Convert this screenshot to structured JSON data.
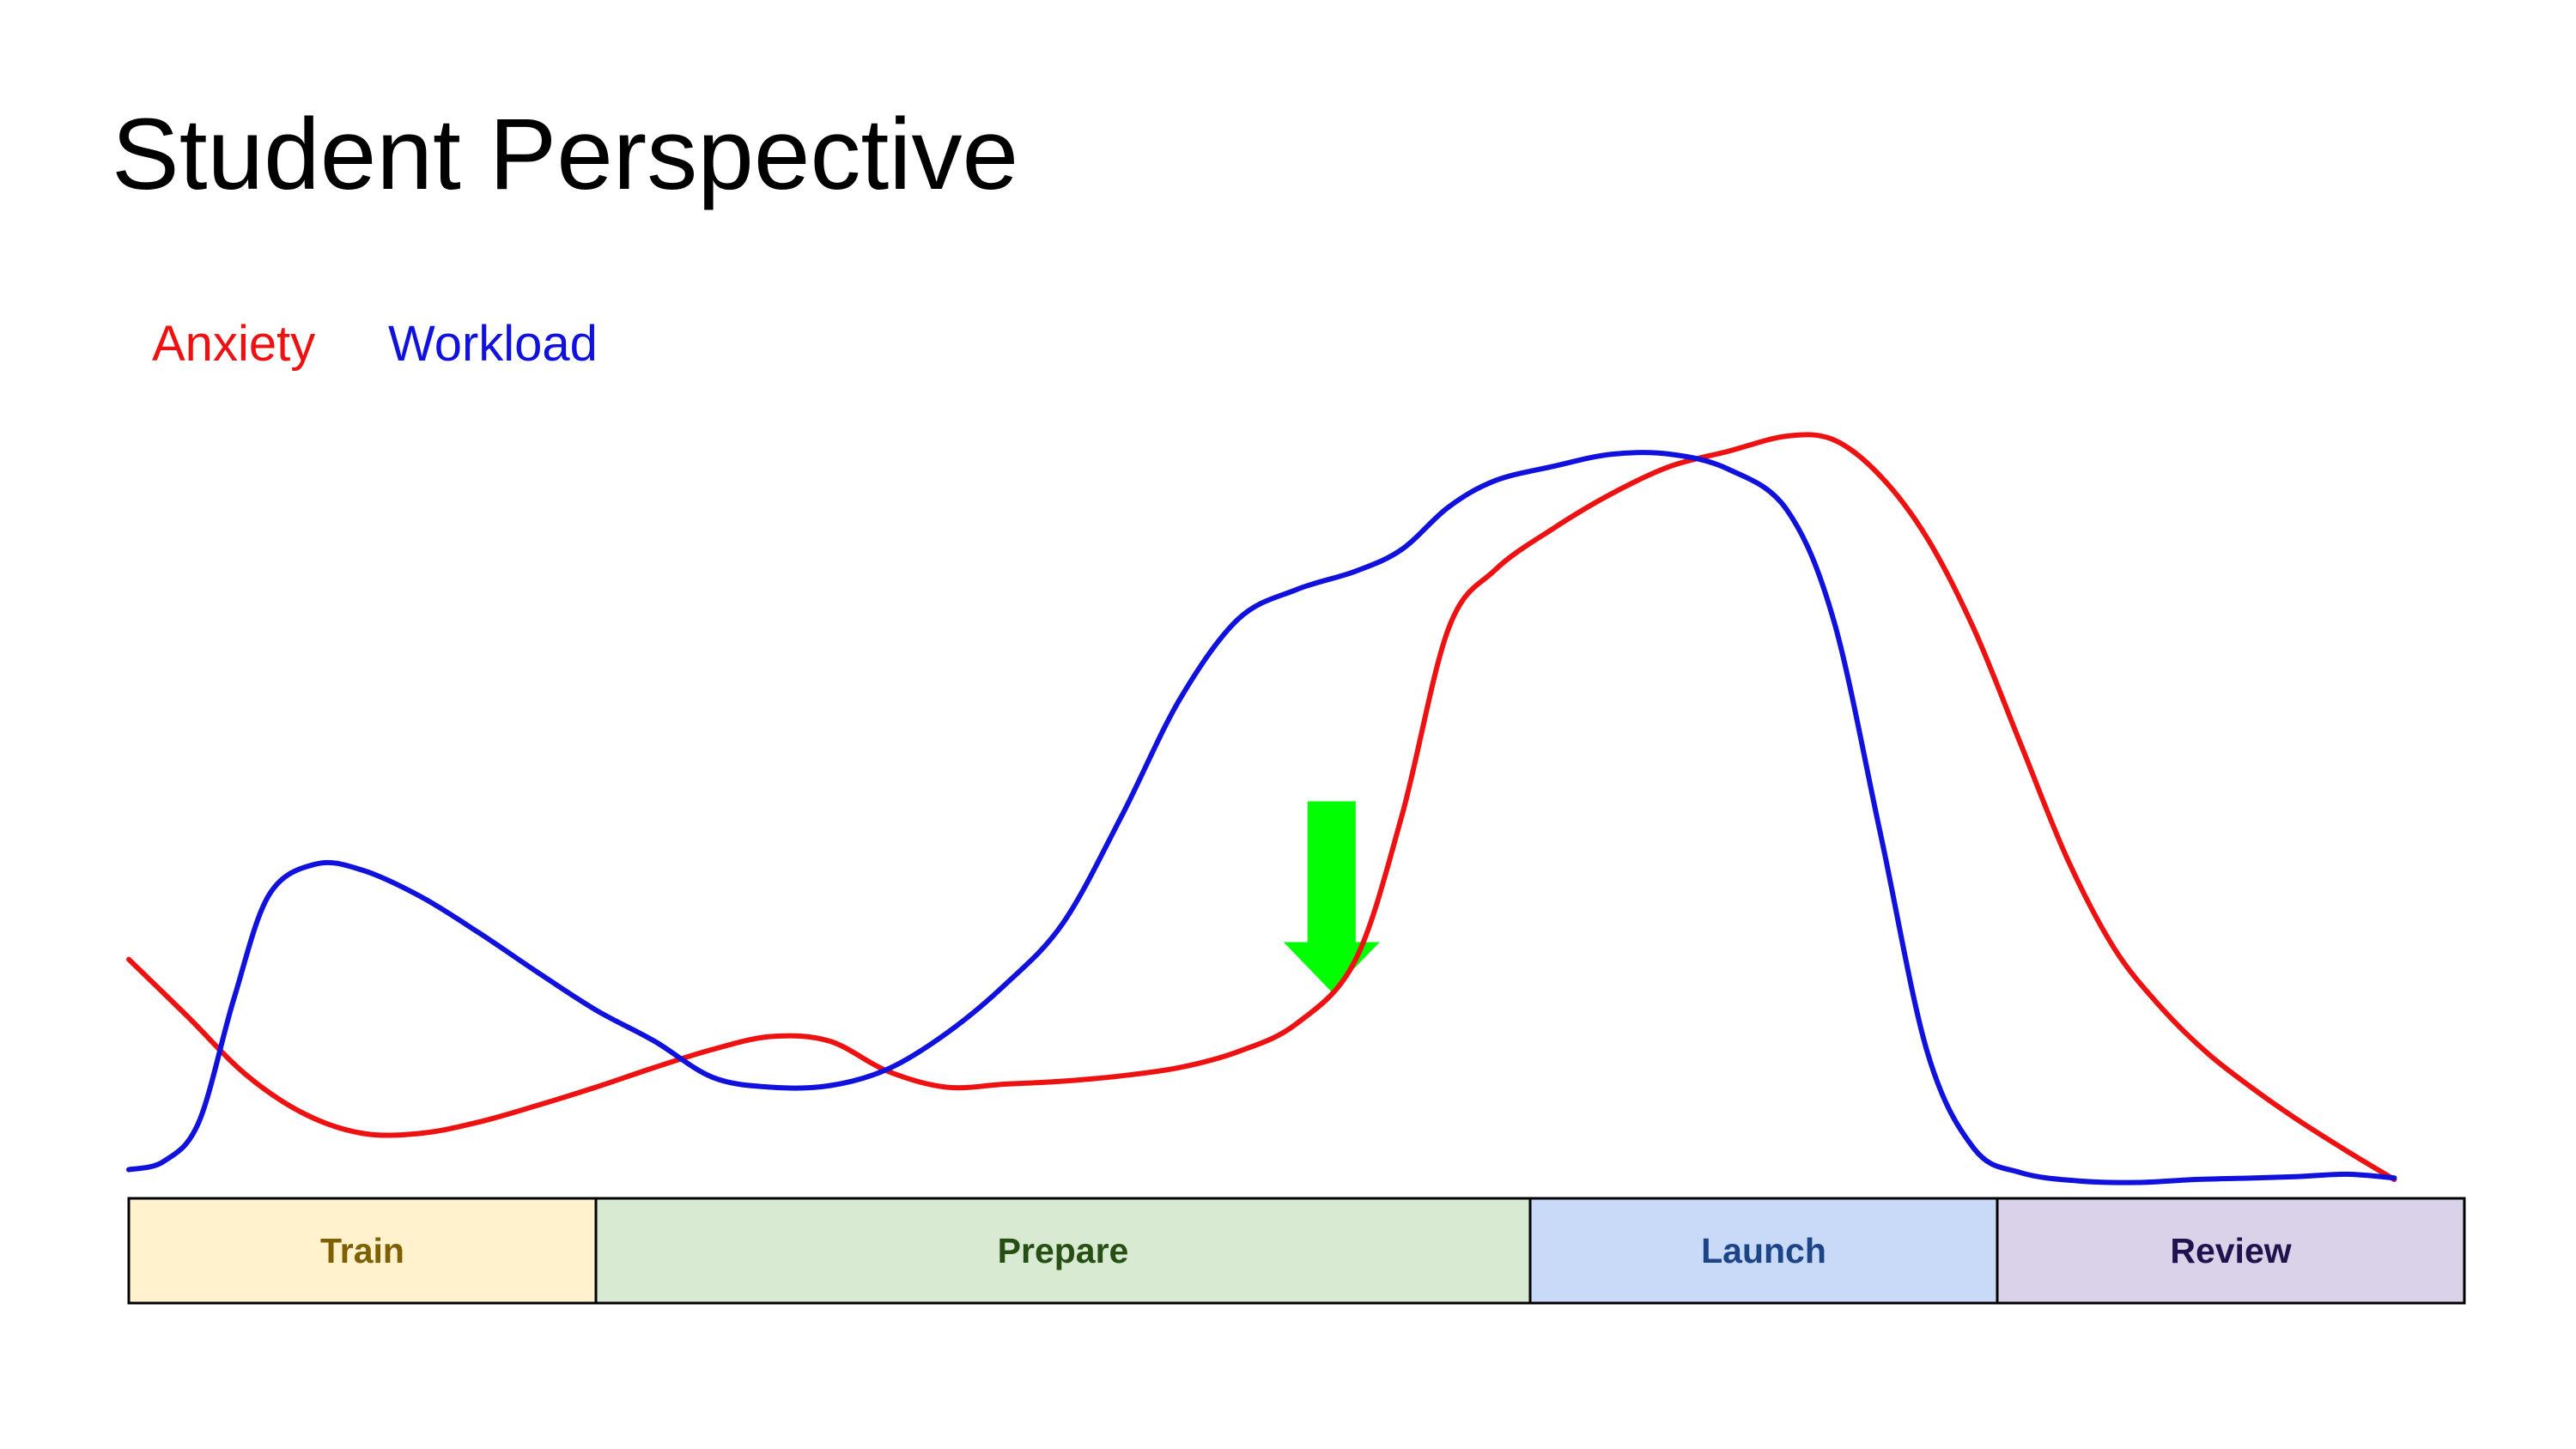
{
  "slide": {
    "title": "Student Perspective"
  },
  "chart_data": {
    "type": "line",
    "title": "Student Perspective",
    "xlabel": "",
    "ylabel": "",
    "x_range": [
      0,
      100
    ],
    "y_range": [
      0,
      100
    ],
    "grid": false,
    "legend_placement": "top-left",
    "series": [
      {
        "name": "Anxiety",
        "color": "#ee1111",
        "points": [
          [
            0,
            29.1
          ],
          [
            2.5,
            21.6
          ],
          [
            5,
            13.9
          ],
          [
            7.5,
            8.7
          ],
          [
            10,
            6.1
          ],
          [
            12.5,
            6.1
          ],
          [
            15,
            7.6
          ],
          [
            17.5,
            9.8
          ],
          [
            20,
            12.2
          ],
          [
            22.5,
            14.8
          ],
          [
            25,
            17.2
          ],
          [
            27.5,
            18.9
          ],
          [
            30,
            18.3
          ],
          [
            32.5,
            14.3
          ],
          [
            35,
            12.2
          ],
          [
            37.5,
            12.6
          ],
          [
            40,
            13.0
          ],
          [
            42.5,
            13.7
          ],
          [
            45,
            14.8
          ],
          [
            47.5,
            16.9
          ],
          [
            50,
            20.6
          ],
          [
            52.5,
            28.9
          ],
          [
            54.5,
            48.0
          ],
          [
            56.5,
            72.8
          ],
          [
            58.5,
            80.6
          ],
          [
            61,
            86.1
          ],
          [
            63.5,
            90.7
          ],
          [
            66,
            94.3
          ],
          [
            68.5,
            96.3
          ],
          [
            71,
            98.3
          ],
          [
            73,
            97.8
          ],
          [
            75,
            93.0
          ],
          [
            77,
            84.8
          ],
          [
            79,
            72.8
          ],
          [
            81,
            57.6
          ],
          [
            83,
            42.4
          ],
          [
            85,
            30.6
          ],
          [
            87,
            22.8
          ],
          [
            89,
            16.7
          ],
          [
            91,
            11.9
          ],
          [
            93,
            7.6
          ],
          [
            95,
            3.7
          ],
          [
            97,
            0.0
          ]
        ]
      },
      {
        "name": "Workload",
        "color": "#1111dd",
        "points": [
          [
            0,
            1.3
          ],
          [
            1.5,
            2.4
          ],
          [
            3,
            7.6
          ],
          [
            4.5,
            23.9
          ],
          [
            6,
            37.6
          ],
          [
            8,
            41.7
          ],
          [
            10,
            40.9
          ],
          [
            12.5,
            37.4
          ],
          [
            15,
            32.6
          ],
          [
            17.5,
            27.4
          ],
          [
            20,
            22.4
          ],
          [
            22.5,
            18.3
          ],
          [
            25,
            13.5
          ],
          [
            27.5,
            12.2
          ],
          [
            30,
            12.4
          ],
          [
            32.5,
            14.6
          ],
          [
            35,
            19.3
          ],
          [
            37.5,
            25.7
          ],
          [
            40,
            33.9
          ],
          [
            42.5,
            48.0
          ],
          [
            45,
            63.5
          ],
          [
            47.5,
            74.1
          ],
          [
            50,
            78.0
          ],
          [
            52.5,
            80.4
          ],
          [
            54.5,
            83.3
          ],
          [
            56.5,
            88.9
          ],
          [
            58.5,
            92.4
          ],
          [
            61,
            94.3
          ],
          [
            63.5,
            95.9
          ],
          [
            66,
            95.9
          ],
          [
            68.5,
            93.9
          ],
          [
            71,
            88.5
          ],
          [
            73,
            73.9
          ],
          [
            75,
            45.7
          ],
          [
            77,
            16.9
          ],
          [
            79,
            4.1
          ],
          [
            81,
            0.9
          ],
          [
            83.5,
            -0.2
          ],
          [
            86,
            -0.4
          ],
          [
            88.5,
            0.0
          ],
          [
            91,
            0.2
          ],
          [
            93,
            0.4
          ],
          [
            95,
            0.7
          ],
          [
            97,
            0.2
          ]
        ]
      }
    ],
    "phases": [
      {
        "label": "Train",
        "fill": "#fff2cc",
        "text_color": "#7f6000",
        "start": 0,
        "end": 20
      },
      {
        "label": "Prepare",
        "fill": "#d9ead3",
        "text_color": "#274e13",
        "start": 20,
        "end": 60
      },
      {
        "label": "Launch",
        "fill": "#c9daf8",
        "text_color": "#1c4587",
        "start": 60,
        "end": 80
      },
      {
        "label": "Review",
        "fill": "#d9d2e9",
        "text_color": "#20124d",
        "start": 80,
        "end": 100
      }
    ],
    "annotations": [
      {
        "type": "down-arrow",
        "color": "#00ff00",
        "x": 51.5,
        "tip_y": 24.8,
        "tail_y": 50.0
      }
    ]
  }
}
